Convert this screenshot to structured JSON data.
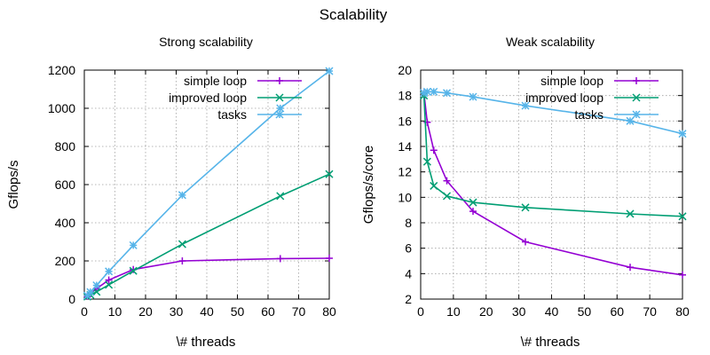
{
  "figure": {
    "title": "Scalability"
  },
  "chart_data": [
    {
      "type": "line",
      "title": "Strong scalability",
      "xlabel": "\\# threads",
      "ylabel": "Gflops/s",
      "xlim": [
        0,
        80
      ],
      "ylim": [
        0,
        1200
      ],
      "xticks": [
        0,
        10,
        20,
        30,
        40,
        50,
        60,
        70,
        80
      ],
      "yticks": [
        0,
        200,
        400,
        600,
        800,
        1000,
        1200
      ],
      "grid": true,
      "legend_position": "top-left",
      "series": [
        {
          "name": "simple loop",
          "color": "#9400d3",
          "marker": "plus",
          "x": [
            1,
            2,
            4,
            8,
            16,
            32,
            64,
            80
          ],
          "y": [
            15,
            28,
            55,
            100,
            155,
            200,
            212,
            214
          ]
        },
        {
          "name": "improved loop",
          "color": "#009e73",
          "marker": "cross",
          "x": [
            1,
            2,
            4,
            8,
            16,
            32,
            64,
            80
          ],
          "y": [
            13,
            22,
            38,
            75,
            148,
            288,
            540,
            655
          ]
        },
        {
          "name": "tasks",
          "color": "#56b4e9",
          "marker": "star",
          "x": [
            1,
            2,
            4,
            8,
            16,
            32,
            64,
            80
          ],
          "y": [
            18,
            37,
            72,
            145,
            282,
            545,
            1000,
            1195
          ]
        }
      ]
    },
    {
      "type": "line",
      "title": "Weak scalability",
      "xlabel": "\\# threads",
      "ylabel": "Gflops/s/core",
      "xlim": [
        0,
        80
      ],
      "ylim": [
        2,
        20
      ],
      "xticks": [
        0,
        10,
        20,
        30,
        40,
        50,
        60,
        70,
        80
      ],
      "yticks": [
        2,
        4,
        6,
        8,
        10,
        12,
        14,
        16,
        18,
        20
      ],
      "grid": true,
      "legend_position": "top-right",
      "series": [
        {
          "name": "simple loop",
          "color": "#9400d3",
          "marker": "plus",
          "x": [
            1,
            2,
            4,
            8,
            16,
            32,
            64,
            80
          ],
          "y": [
            18.2,
            15.9,
            13.7,
            11.3,
            8.9,
            6.5,
            4.5,
            3.9
          ]
        },
        {
          "name": "improved loop",
          "color": "#009e73",
          "marker": "cross",
          "x": [
            1,
            2,
            4,
            8,
            16,
            32,
            64,
            80
          ],
          "y": [
            18.0,
            12.8,
            10.9,
            10.1,
            9.6,
            9.2,
            8.7,
            8.5
          ]
        },
        {
          "name": "tasks",
          "color": "#56b4e9",
          "marker": "star",
          "x": [
            1,
            2,
            4,
            8,
            16,
            32,
            64,
            80
          ],
          "y": [
            18.2,
            18.3,
            18.3,
            18.2,
            17.9,
            17.2,
            16.0,
            15.0
          ]
        }
      ]
    }
  ]
}
